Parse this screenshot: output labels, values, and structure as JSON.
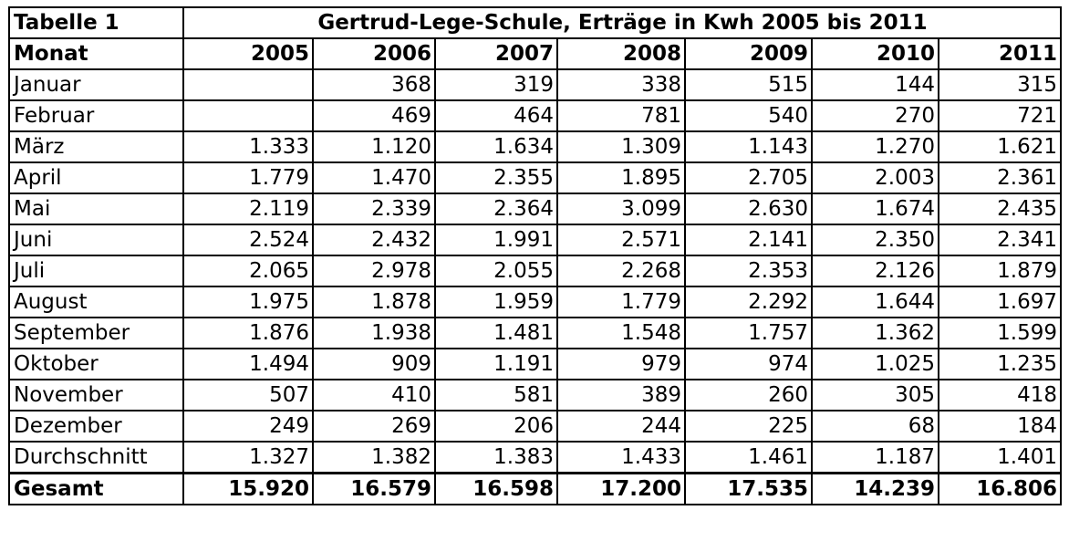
{
  "table": {
    "table_label": "Tabelle 1",
    "title": "Gertrud-Lege-Schule, Erträge in Kwh 2005 bis 2011",
    "header_label": "Monat",
    "years": [
      "2005",
      "2006",
      "2007",
      "2008",
      "2009",
      "2010",
      "2011"
    ],
    "rows": [
      {
        "label": "Januar",
        "values": [
          "",
          "368",
          "319",
          "338",
          "515",
          "144",
          "315"
        ]
      },
      {
        "label": "Februar",
        "values": [
          "",
          "469",
          "464",
          "781",
          "540",
          "270",
          "721"
        ]
      },
      {
        "label": "März",
        "values": [
          "1.333",
          "1.120",
          "1.634",
          "1.309",
          "1.143",
          "1.270",
          "1.621"
        ]
      },
      {
        "label": "April",
        "values": [
          "1.779",
          "1.470",
          "2.355",
          "1.895",
          "2.705",
          "2.003",
          "2.361"
        ]
      },
      {
        "label": "Mai",
        "values": [
          "2.119",
          "2.339",
          "2.364",
          "3.099",
          "2.630",
          "1.674",
          "2.435"
        ]
      },
      {
        "label": "Juni",
        "values": [
          "2.524",
          "2.432",
          "1.991",
          "2.571",
          "2.141",
          "2.350",
          "2.341"
        ]
      },
      {
        "label": "Juli",
        "values": [
          "2.065",
          "2.978",
          "2.055",
          "2.268",
          "2.353",
          "2.126",
          "1.879"
        ]
      },
      {
        "label": "August",
        "values": [
          "1.975",
          "1.878",
          "1.959",
          "1.779",
          "2.292",
          "1.644",
          "1.697"
        ]
      },
      {
        "label": "September",
        "values": [
          "1.876",
          "1.938",
          "1.481",
          "1.548",
          "1.757",
          "1.362",
          "1.599"
        ]
      },
      {
        "label": "Oktober",
        "values": [
          "1.494",
          "909",
          "1.191",
          "979",
          "974",
          "1.025",
          "1.235"
        ]
      },
      {
        "label": "November",
        "values": [
          "507",
          "410",
          "581",
          "389",
          "260",
          "305",
          "418"
        ]
      },
      {
        "label": "Dezember",
        "values": [
          "249",
          "269",
          "206",
          "244",
          "225",
          "68",
          "184"
        ]
      },
      {
        "label": "Durchschnitt",
        "values": [
          "1.327",
          "1.382",
          "1.383",
          "1.433",
          "1.461",
          "1.187",
          "1.401"
        ]
      }
    ],
    "total": {
      "label": "Gesamt",
      "values": [
        "15.920",
        "16.579",
        "16.598",
        "17.200",
        "17.535",
        "14.239",
        "16.806"
      ]
    }
  }
}
